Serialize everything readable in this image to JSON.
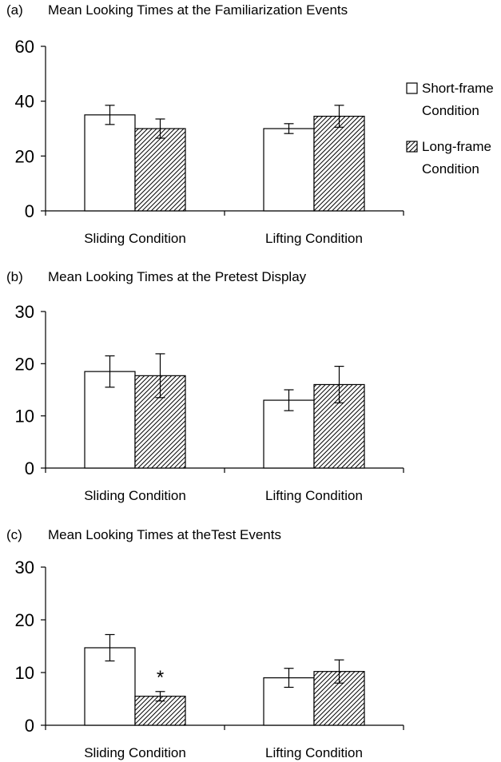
{
  "legend": {
    "items": [
      {
        "label_line1": "Short-frame",
        "label_line2": "Condition",
        "pattern": "white"
      },
      {
        "label_line1": "Long-frame",
        "label_line2": "Condition",
        "pattern": "hatched"
      }
    ]
  },
  "colors": {
    "short_fill": "#ffffff",
    "hatch": "#000000",
    "axis": "#000000"
  },
  "chart_data": [
    {
      "type": "bar",
      "panel": "(a)",
      "title": "Mean Looking Times at the Familiarization Events",
      "categories": [
        "Sliding Condition",
        "Lifting Condition"
      ],
      "series": [
        {
          "name": "Short-frame Condition",
          "values": [
            35,
            30
          ],
          "error": [
            3.5,
            1.8
          ]
        },
        {
          "name": "Long-frame Condition",
          "values": [
            30,
            34.5
          ],
          "error": [
            3.5,
            4
          ]
        }
      ],
      "ylim": [
        0,
        60
      ],
      "yticks": [
        0,
        20,
        40,
        60
      ],
      "annotations": []
    },
    {
      "type": "bar",
      "panel": "(b)",
      "title": "Mean Looking Times at the Pretest Display",
      "categories": [
        "Sliding Condition",
        "Lifting Condition"
      ],
      "series": [
        {
          "name": "Short-frame Condition",
          "values": [
            18.5,
            13
          ],
          "error": [
            3,
            2
          ]
        },
        {
          "name": "Long-frame Condition",
          "values": [
            17.7,
            16
          ],
          "error": [
            4.2,
            3.5
          ]
        }
      ],
      "ylim": [
        0,
        30
      ],
      "yticks": [
        0,
        10,
        20,
        30
      ],
      "annotations": []
    },
    {
      "type": "bar",
      "panel": "(c)",
      "title": "Mean Looking Times at theTest Events",
      "categories": [
        "Sliding Condition",
        "Lifting Condition"
      ],
      "series": [
        {
          "name": "Short-frame Condition",
          "values": [
            14.7,
            9
          ],
          "error": [
            2.5,
            1.8
          ]
        },
        {
          "name": "Long-frame Condition",
          "values": [
            5.5,
            10.2
          ],
          "error": [
            0.9,
            2.2
          ]
        }
      ],
      "ylim": [
        0,
        30
      ],
      "yticks": [
        0,
        10,
        20,
        30
      ],
      "annotations": [
        {
          "text": "*",
          "category": 0,
          "series": 1
        }
      ]
    }
  ]
}
